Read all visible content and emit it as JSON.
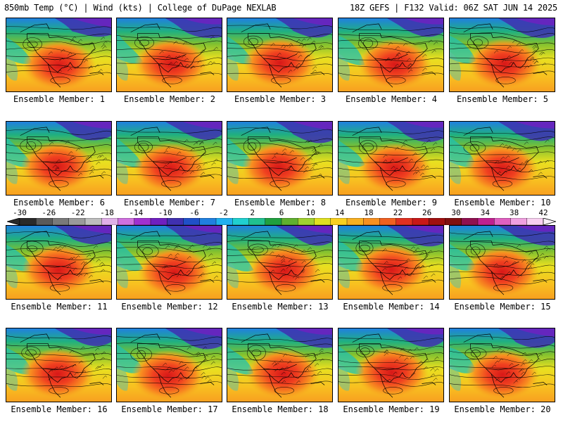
{
  "header": {
    "left": "850mb Temp (°C) | Wind (kts) | College of DuPage NEXLAB",
    "right": "18Z GEFS | F132 Valid: 06Z SAT JUN 14 2025"
  },
  "members": [
    "Ensemble Member: 1",
    "Ensemble Member: 2",
    "Ensemble Member: 3",
    "Ensemble Member: 4",
    "Ensemble Member: 5",
    "Ensemble Member: 6",
    "Ensemble Member: 7",
    "Ensemble Member: 8",
    "Ensemble Member: 9",
    "Ensemble Member: 10",
    "Ensemble Member: 11",
    "Ensemble Member: 12",
    "Ensemble Member: 13",
    "Ensemble Member: 14",
    "Ensemble Member: 15",
    "Ensemble Member: 16",
    "Ensemble Member: 17",
    "Ensemble Member: 18",
    "Ensemble Member: 19",
    "Ensemble Member: 20"
  ],
  "colorbar": {
    "labels": [
      "-30",
      "-26",
      "-22",
      "-18",
      "-14",
      "-10",
      "-6",
      "-2",
      "2",
      "6",
      "10",
      "14",
      "18",
      "22",
      "26",
      "30",
      "34",
      "38",
      "42"
    ],
    "colors": [
      "#2a2a2a",
      "#5a5a5a",
      "#7a7a7a",
      "#9a9a9a",
      "#bdbdbd",
      "#e0b0e8",
      "#d070e0",
      "#a030d0",
      "#7020c0",
      "#4030b0",
      "#2050c8",
      "#2080e0",
      "#20b0f0",
      "#20d0d0",
      "#20c090",
      "#20a040",
      "#60b030",
      "#a0d030",
      "#e0e020",
      "#f8d020",
      "#f8b020",
      "#f89020",
      "#f06020",
      "#e03020",
      "#c81818",
      "#a01010",
      "#801010",
      "#901050",
      "#c02090",
      "#e060c0",
      "#f0a0e0",
      "#f8d0f0"
    ]
  },
  "maps": {
    "style": "850mb temperature shaded, wind barbs, height contours"
  }
}
